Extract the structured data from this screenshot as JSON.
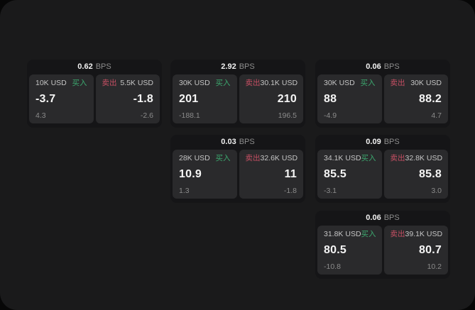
{
  "labels": {
    "bps_unit": "BPS",
    "buy": "买入",
    "sell": "卖出"
  },
  "colors": {
    "buy": "#3ca86f",
    "sell": "#c64f63"
  },
  "cards": [
    {
      "row": 1,
      "col": 1,
      "bps": "0.62",
      "buy": {
        "size": "10K USD",
        "value": "-3.7",
        "sub": "4.3"
      },
      "sell": {
        "size": "5.5K USD",
        "value": "-1.8",
        "sub": "-2.6"
      }
    },
    {
      "row": 1,
      "col": 2,
      "bps": "2.92",
      "buy": {
        "size": "30K USD",
        "value": "201",
        "sub": "-188.1"
      },
      "sell": {
        "size": "30.1K USD",
        "value": "210",
        "sub": "196.5"
      }
    },
    {
      "row": 1,
      "col": 3,
      "bps": "0.06",
      "buy": {
        "size": "30K USD",
        "value": "88",
        "sub": "-4.9"
      },
      "sell": {
        "size": "30K USD",
        "value": "88.2",
        "sub": "4.7"
      }
    },
    {
      "row": 2,
      "col": 2,
      "bps": "0.03",
      "buy": {
        "size": "28K USD",
        "value": "10.9",
        "sub": "1.3"
      },
      "sell": {
        "size": "32.6K USD",
        "value": "11",
        "sub": "-1.8"
      }
    },
    {
      "row": 2,
      "col": 3,
      "bps": "0.09",
      "buy": {
        "size": "34.1K USD",
        "value": "85.5",
        "sub": "-3.1"
      },
      "sell": {
        "size": "32.8K USD",
        "value": "85.8",
        "sub": "3.0"
      }
    },
    {
      "row": 3,
      "col": 3,
      "bps": "0.06",
      "buy": {
        "size": "31.8K USD",
        "value": "80.5",
        "sub": "-10.8"
      },
      "sell": {
        "size": "39.1K USD",
        "value": "80.7",
        "sub": "10.2"
      }
    }
  ]
}
